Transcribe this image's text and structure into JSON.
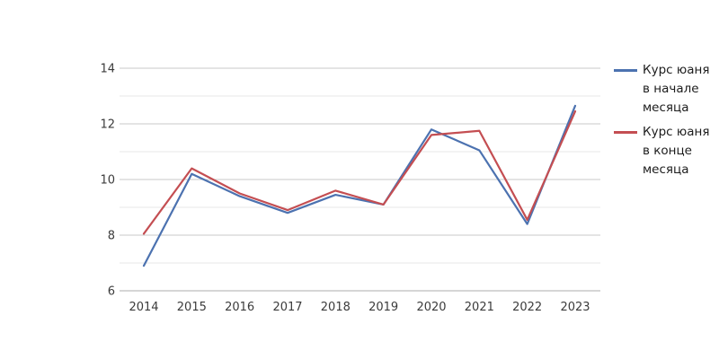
{
  "chart_data": {
    "type": "line",
    "title": "",
    "xlabel": "",
    "ylabel": "",
    "categories": [
      "2014",
      "2015",
      "2016",
      "2017",
      "2018",
      "2019",
      "2020",
      "2021",
      "2022",
      "2023"
    ],
    "series": [
      {
        "name": "Курс юаня в начале месяца",
        "color": "#4c72b0",
        "values": [
          6.9,
          10.2,
          9.4,
          8.8,
          9.45,
          9.1,
          11.8,
          11.05,
          8.4,
          12.65
        ]
      },
      {
        "name": "Курс юаня в конце месяца",
        "color": "#c44e52",
        "values": [
          8.05,
          10.4,
          9.5,
          8.9,
          9.6,
          9.1,
          11.6,
          11.75,
          8.55,
          12.45
        ]
      }
    ],
    "ylim": [
      6,
      14
    ],
    "yticks": [
      6,
      8,
      10,
      12,
      14
    ],
    "minor_yticks": [
      7,
      9,
      11,
      13
    ],
    "grid": true,
    "legend_position": "right",
    "colors": {
      "major_gridline": "#c9c9c9",
      "minor_gridline": "#e7e7e7",
      "baseline": "#adadad",
      "tick_text": "#3b3b3b",
      "background": "#ffffff"
    }
  }
}
